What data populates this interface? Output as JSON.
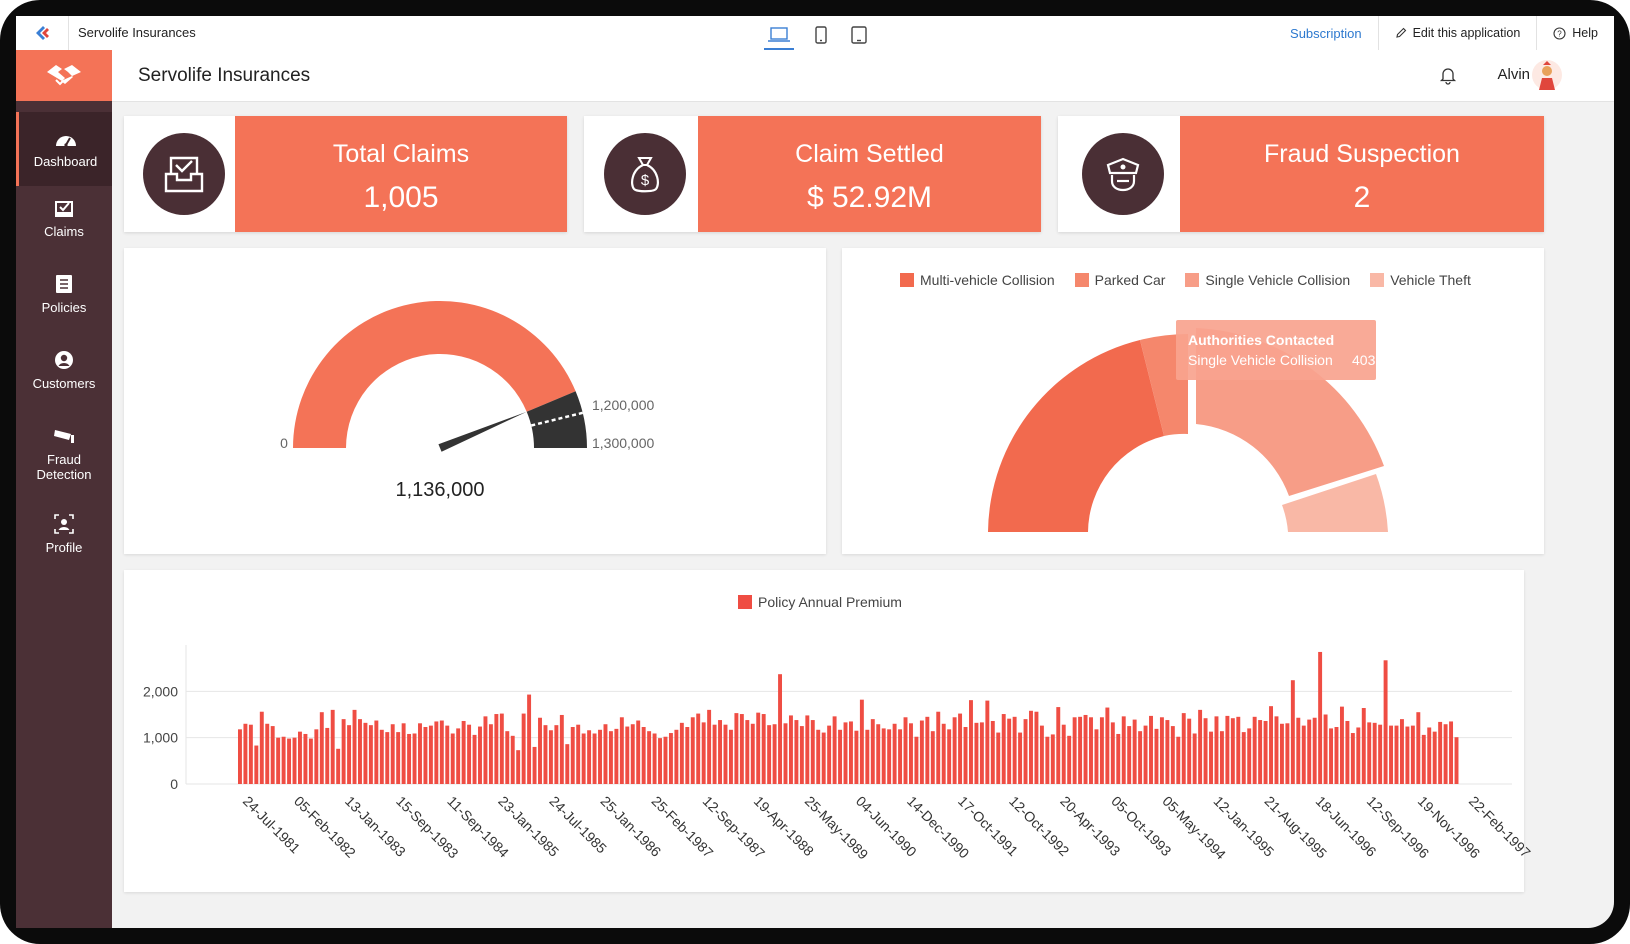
{
  "topbar": {
    "app_name": "Servolife Insurances",
    "subscription": "Subscription",
    "edit_app": "Edit this application",
    "help": "Help",
    "devices": [
      "laptop-icon",
      "phone-icon",
      "tablet-icon"
    ],
    "active_device": "laptop-icon"
  },
  "header": {
    "title": "Servolife Insurances",
    "user_name": "Alvin"
  },
  "sidebar": {
    "items": [
      {
        "label": "Dashboard",
        "icon": "speedometer-icon",
        "active": true
      },
      {
        "label": "Claims",
        "icon": "claims-checklist-icon",
        "active": false
      },
      {
        "label": "Policies",
        "icon": "policy-list-icon",
        "active": false
      },
      {
        "label": "Customers",
        "icon": "customer-icon",
        "active": false
      },
      {
        "label": "Fraud Detection",
        "icon": "cctv-camera-icon",
        "active": false
      },
      {
        "label": "Profile",
        "icon": "profile-icon",
        "active": false
      }
    ]
  },
  "kpis": [
    {
      "label": "Total Claims",
      "value": "1,005",
      "icon": "inbox-check-icon"
    },
    {
      "label": "Claim Settled",
      "value": "$ 52.92M",
      "icon": "money-bag-icon"
    },
    {
      "label": "Fraud Suspection",
      "value": "2",
      "icon": "police-badge-icon"
    }
  ],
  "colors": {
    "accent": "#f47357",
    "sidebar": "#4b3036",
    "dark": "#333333",
    "bar": "#ef4d43",
    "link": "#2d79cf"
  },
  "gauge": {
    "value": 1136000,
    "value_label": "1,136,000",
    "min_label": "0",
    "band_start_label": "1,200,000",
    "max_label": "1,300,000",
    "min": 0,
    "band_start": 1200000,
    "max": 1300000
  },
  "donut": {
    "legend": [
      {
        "name": "Multi-vehicle Collision",
        "color": "#f26a4e"
      },
      {
        "name": "Parked Car",
        "color": "#f5876c"
      },
      {
        "name": "Single Vehicle Collision",
        "color": "#f79d87"
      },
      {
        "name": "Vehicle Theft",
        "color": "#f9b8a6"
      }
    ],
    "tooltip": {
      "title": "Authorities Contacted",
      "series": "Single Vehicle Collision",
      "value": "403"
    }
  },
  "chart_data": {
    "type": "bar",
    "title": "",
    "legend": [
      "Policy Annual Premium"
    ],
    "series": [
      {
        "name": "Policy Annual Premium"
      }
    ],
    "ylim": [
      0,
      3000
    ],
    "yticks": [
      "0",
      "1,000",
      "2,000"
    ],
    "xtick_labels": [
      "24-Jul-1981",
      "05-Feb-1982",
      "13-Jan-1983",
      "15-Sep-1983",
      "11-Sep-1984",
      "23-Jan-1985",
      "24-Jul-1985",
      "25-Jan-1986",
      "25-Feb-1987",
      "12-Sep-1987",
      "19-Apr-1988",
      "25-May-1989",
      "04-Jun-1990",
      "14-Dec-1990",
      "17-Oct-1991",
      "12-Oct-1992",
      "20-Apr-1993",
      "05-Oct-1993",
      "05-May-1994",
      "12-Jan-1995",
      "21-Aug-1995",
      "18-Jun-1996",
      "12-Sep-1996",
      "19-Nov-1996",
      "22-Feb-1997"
    ],
    "values": [
      1180,
      1300,
      1280,
      830,
      1560,
      1300,
      1250,
      1000,
      1020,
      980,
      1000,
      1130,
      1080,
      980,
      1180,
      1550,
      1210,
      1600,
      760,
      1400,
      1270,
      1600,
      1400,
      1320,
      1270,
      1370,
      1170,
      1120,
      1290,
      1120,
      1310,
      1080,
      1090,
      1310,
      1230,
      1260,
      1350,
      1370,
      1260,
      1090,
      1200,
      1360,
      1280,
      1060,
      1240,
      1460,
      1290,
      1510,
      1520,
      1140,
      1040,
      730,
      1520,
      1930,
      800,
      1430,
      1270,
      1160,
      1270,
      1490,
      860,
      1230,
      1280,
      1090,
      1160,
      1090,
      1170,
      1290,
      1140,
      1190,
      1440,
      1240,
      1290,
      1370,
      1230,
      1140,
      1090,
      990,
      1020,
      1100,
      1170,
      1320,
      1230,
      1440,
      1520,
      1330,
      1600,
      1280,
      1380,
      1280,
      1170,
      1530,
      1510,
      1380,
      1300,
      1540,
      1510,
      1270,
      1290,
      2370,
      1310,
      1480,
      1380,
      1250,
      1480,
      1380,
      1170,
      1110,
      1260,
      1460,
      1170,
      1330,
      1350,
      1150,
      1820,
      1170,
      1400,
      1290,
      1200,
      1180,
      1300,
      1180,
      1440,
      1310,
      1020,
      1370,
      1450,
      1140,
      1560,
      1300,
      1180,
      1440,
      1520,
      1230,
      1810,
      1320,
      1330,
      1800,
      1360,
      1110,
      1510,
      1410,
      1450,
      1110,
      1400,
      1580,
      1560,
      1260,
      1020,
      1070,
      1660,
      1280,
      1040,
      1440,
      1450,
      1490,
      1440,
      1180,
      1440,
      1650,
      1330,
      1080,
      1460,
      1250,
      1390,
      1140,
      1260,
      1470,
      1190,
      1440,
      1380,
      1250,
      1020,
      1530,
      1410,
      1090,
      1600,
      1420,
      1130,
      1460,
      1140,
      1470,
      1420,
      1450,
      1120,
      1200,
      1450,
      1380,
      1360,
      1680,
      1460,
      1300,
      1310,
      2240,
      1430,
      1260,
      1390,
      1430,
      2850,
      1500,
      1200,
      1230,
      1670,
      1360,
      1100,
      1220,
      1640,
      1330,
      1320,
      1280,
      2670,
      1260,
      1260,
      1400,
      1240,
      1260,
      1550,
      1060,
      1220,
      1130,
      1340,
      1290,
      1350,
      1010
    ],
    "grid": true,
    "legend_placement": "top-center"
  }
}
